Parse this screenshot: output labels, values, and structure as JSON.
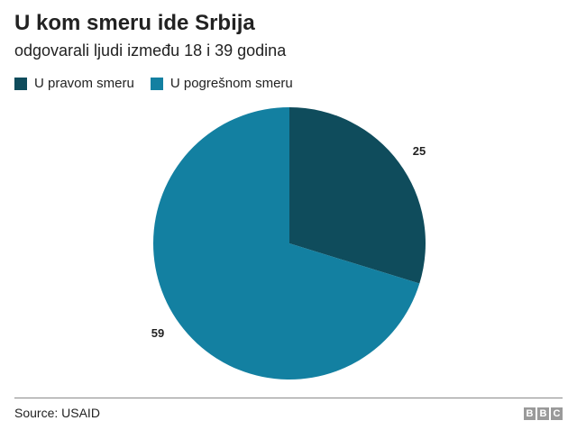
{
  "header": {
    "title": "U kom smeru ide Srbija",
    "subtitle": "odgovarali ljudi između 18 i 39 godina"
  },
  "chart_data": {
    "type": "pie",
    "title": "U kom smeru ide Srbija",
    "subtitle": "odgovarali ljudi između 18 i 39 godina",
    "legend_position": "top-left",
    "series": [
      {
        "name": "U pravom smeru",
        "value": 25,
        "label": "25",
        "color": "#0f4c5c"
      },
      {
        "name": "U pogrešnom smeru",
        "value": 59,
        "label": "59",
        "color": "#1380a1"
      }
    ]
  },
  "footer": {
    "source": "Source: USAID",
    "logo_letters": [
      "B",
      "B",
      "C"
    ]
  }
}
